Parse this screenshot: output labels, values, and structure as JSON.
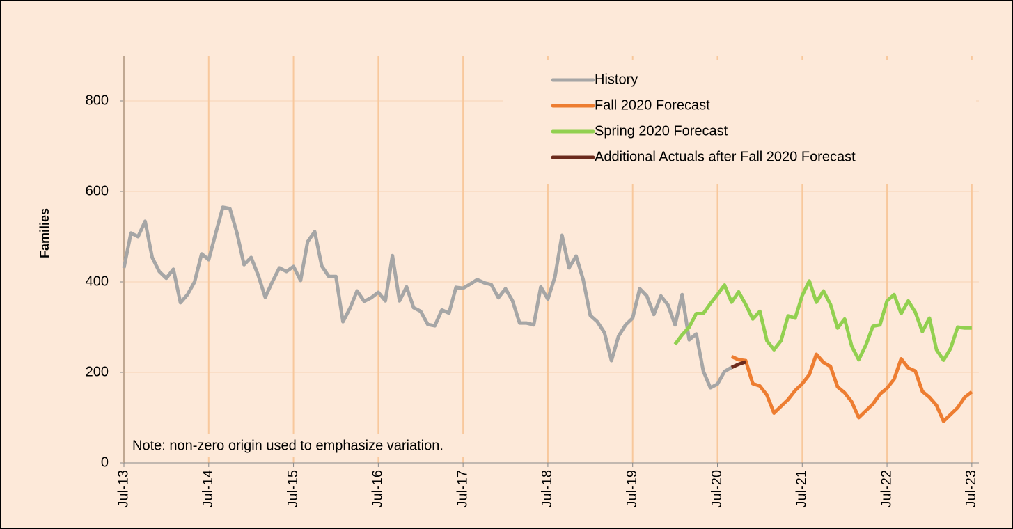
{
  "chart_data": {
    "type": "line",
    "y_label": "Families",
    "note": "Note: non-zero origin used to emphasize variation.",
    "ylim": [
      0,
      900
    ],
    "yticks": [
      0,
      200,
      400,
      600,
      800
    ],
    "xlim": [
      "2013-07",
      "2023-08"
    ],
    "xticks": [
      {
        "value": "2013-07",
        "label": "Jul-13"
      },
      {
        "value": "2014-07",
        "label": "Jul-14"
      },
      {
        "value": "2015-07",
        "label": "Jul-15"
      },
      {
        "value": "2016-07",
        "label": "Jul-16"
      },
      {
        "value": "2017-07",
        "label": "Jul-17"
      },
      {
        "value": "2018-07",
        "label": "Jul-18"
      },
      {
        "value": "2019-07",
        "label": "Jul-19"
      },
      {
        "value": "2020-07",
        "label": "Jul-20"
      },
      {
        "value": "2021-07",
        "label": "Jul-21"
      },
      {
        "value": "2022-07",
        "label": "Jul-22"
      },
      {
        "value": "2023-07",
        "label": "Jul-23"
      }
    ],
    "grid": true,
    "legend": "upper right",
    "series": [
      {
        "name": "History",
        "color": "#a6a6a6",
        "x": [
          "2013-07",
          "2013-08",
          "2013-09",
          "2013-10",
          "2013-11",
          "2013-12",
          "2014-01",
          "2014-02",
          "2014-03",
          "2014-04",
          "2014-05",
          "2014-06",
          "2014-07",
          "2014-08",
          "2014-09",
          "2014-10",
          "2014-11",
          "2014-12",
          "2015-01",
          "2015-02",
          "2015-03",
          "2015-04",
          "2015-05",
          "2015-06",
          "2015-07",
          "2015-08",
          "2015-09",
          "2015-10",
          "2015-11",
          "2015-12",
          "2016-01",
          "2016-02",
          "2016-03",
          "2016-04",
          "2016-05",
          "2016-06",
          "2016-07",
          "2016-08",
          "2016-09",
          "2016-10",
          "2016-11",
          "2016-12",
          "2017-01",
          "2017-02",
          "2017-03",
          "2017-04",
          "2017-05",
          "2017-06",
          "2017-07",
          "2017-08",
          "2017-09",
          "2017-10",
          "2017-11",
          "2017-12",
          "2018-01",
          "2018-02",
          "2018-03",
          "2018-04",
          "2018-05",
          "2018-06",
          "2018-07",
          "2018-08",
          "2018-09",
          "2018-10",
          "2018-11",
          "2018-12",
          "2019-01",
          "2019-02",
          "2019-03",
          "2019-04",
          "2019-05",
          "2019-06",
          "2019-07",
          "2019-08",
          "2019-09",
          "2019-10",
          "2019-11",
          "2019-12",
          "2020-01",
          "2020-02",
          "2020-03",
          "2020-04",
          "2020-05",
          "2020-06",
          "2020-07",
          "2020-08",
          "2020-09"
        ],
        "values": [
          431,
          508,
          500,
          534,
          454,
          423,
          408,
          428,
          354,
          372,
          400,
          462,
          449,
          508,
          565,
          562,
          508,
          438,
          454,
          415,
          366,
          400,
          431,
          423,
          434,
          403,
          489,
          511,
          435,
          412,
          412,
          312,
          342,
          380,
          357,
          365,
          377,
          358,
          458,
          358,
          389,
          343,
          335,
          306,
          303,
          338,
          331,
          388,
          386,
          395,
          405,
          398,
          394,
          365,
          385,
          358,
          309,
          309,
          305,
          389,
          362,
          411,
          503,
          431,
          457,
          405,
          326,
          312,
          288,
          226,
          280,
          305,
          320,
          385,
          369,
          328,
          369,
          349,
          305,
          372,
          272,
          285,
          203,
          166,
          174,
          202,
          211
        ]
      },
      {
        "name": "Fall 2020 Forecast",
        "color": "#ed7d31",
        "x": [
          "2020-09",
          "2020-10",
          "2020-11",
          "2020-12",
          "2021-01",
          "2021-02",
          "2021-03",
          "2021-04",
          "2021-05",
          "2021-06",
          "2021-07",
          "2021-08",
          "2021-09",
          "2021-10",
          "2021-11",
          "2021-12",
          "2022-01",
          "2022-02",
          "2022-03",
          "2022-04",
          "2022-05",
          "2022-06",
          "2022-07",
          "2022-08",
          "2022-09",
          "2022-10",
          "2022-11",
          "2022-12",
          "2023-01",
          "2023-02",
          "2023-03",
          "2023-04",
          "2023-05",
          "2023-06",
          "2023-07"
        ],
        "values": [
          235,
          228,
          226,
          175,
          170,
          150,
          110,
          125,
          140,
          160,
          175,
          195,
          240,
          222,
          213,
          168,
          155,
          135,
          100,
          115,
          130,
          152,
          165,
          185,
          230,
          210,
          203,
          158,
          145,
          127,
          92,
          107,
          122,
          145,
          157
        ]
      },
      {
        "name": "Spring 2020 Forecast",
        "color": "#92d050",
        "x": [
          "2020-01",
          "2020-02",
          "2020-03",
          "2020-04",
          "2020-05",
          "2020-06",
          "2020-07",
          "2020-08",
          "2020-09",
          "2020-10",
          "2020-11",
          "2020-12",
          "2021-01",
          "2021-02",
          "2021-03",
          "2021-04",
          "2021-05",
          "2021-06",
          "2021-07",
          "2021-08",
          "2021-09",
          "2021-10",
          "2021-11",
          "2021-12",
          "2022-01",
          "2022-02",
          "2022-03",
          "2022-04",
          "2022-05",
          "2022-06",
          "2022-07",
          "2022-08",
          "2022-09",
          "2022-10",
          "2022-11",
          "2022-12",
          "2023-01",
          "2023-02",
          "2023-03",
          "2023-04",
          "2023-05",
          "2023-06",
          "2023-07"
        ],
        "values": [
          262,
          283,
          300,
          330,
          330,
          352,
          372,
          393,
          355,
          378,
          350,
          318,
          335,
          270,
          250,
          270,
          325,
          320,
          370,
          402,
          355,
          380,
          350,
          298,
          318,
          258,
          228,
          260,
          302,
          305,
          358,
          372,
          330,
          358,
          333,
          290,
          320,
          250,
          227,
          253,
          300,
          298,
          298
        ]
      },
      {
        "name": "Additional Actuals after Fall 2020 Forecast",
        "color": "#6b2a1c",
        "x": [
          "2020-09",
          "2020-10",
          "2020-11"
        ],
        "values": [
          211,
          218,
          223
        ]
      }
    ]
  }
}
